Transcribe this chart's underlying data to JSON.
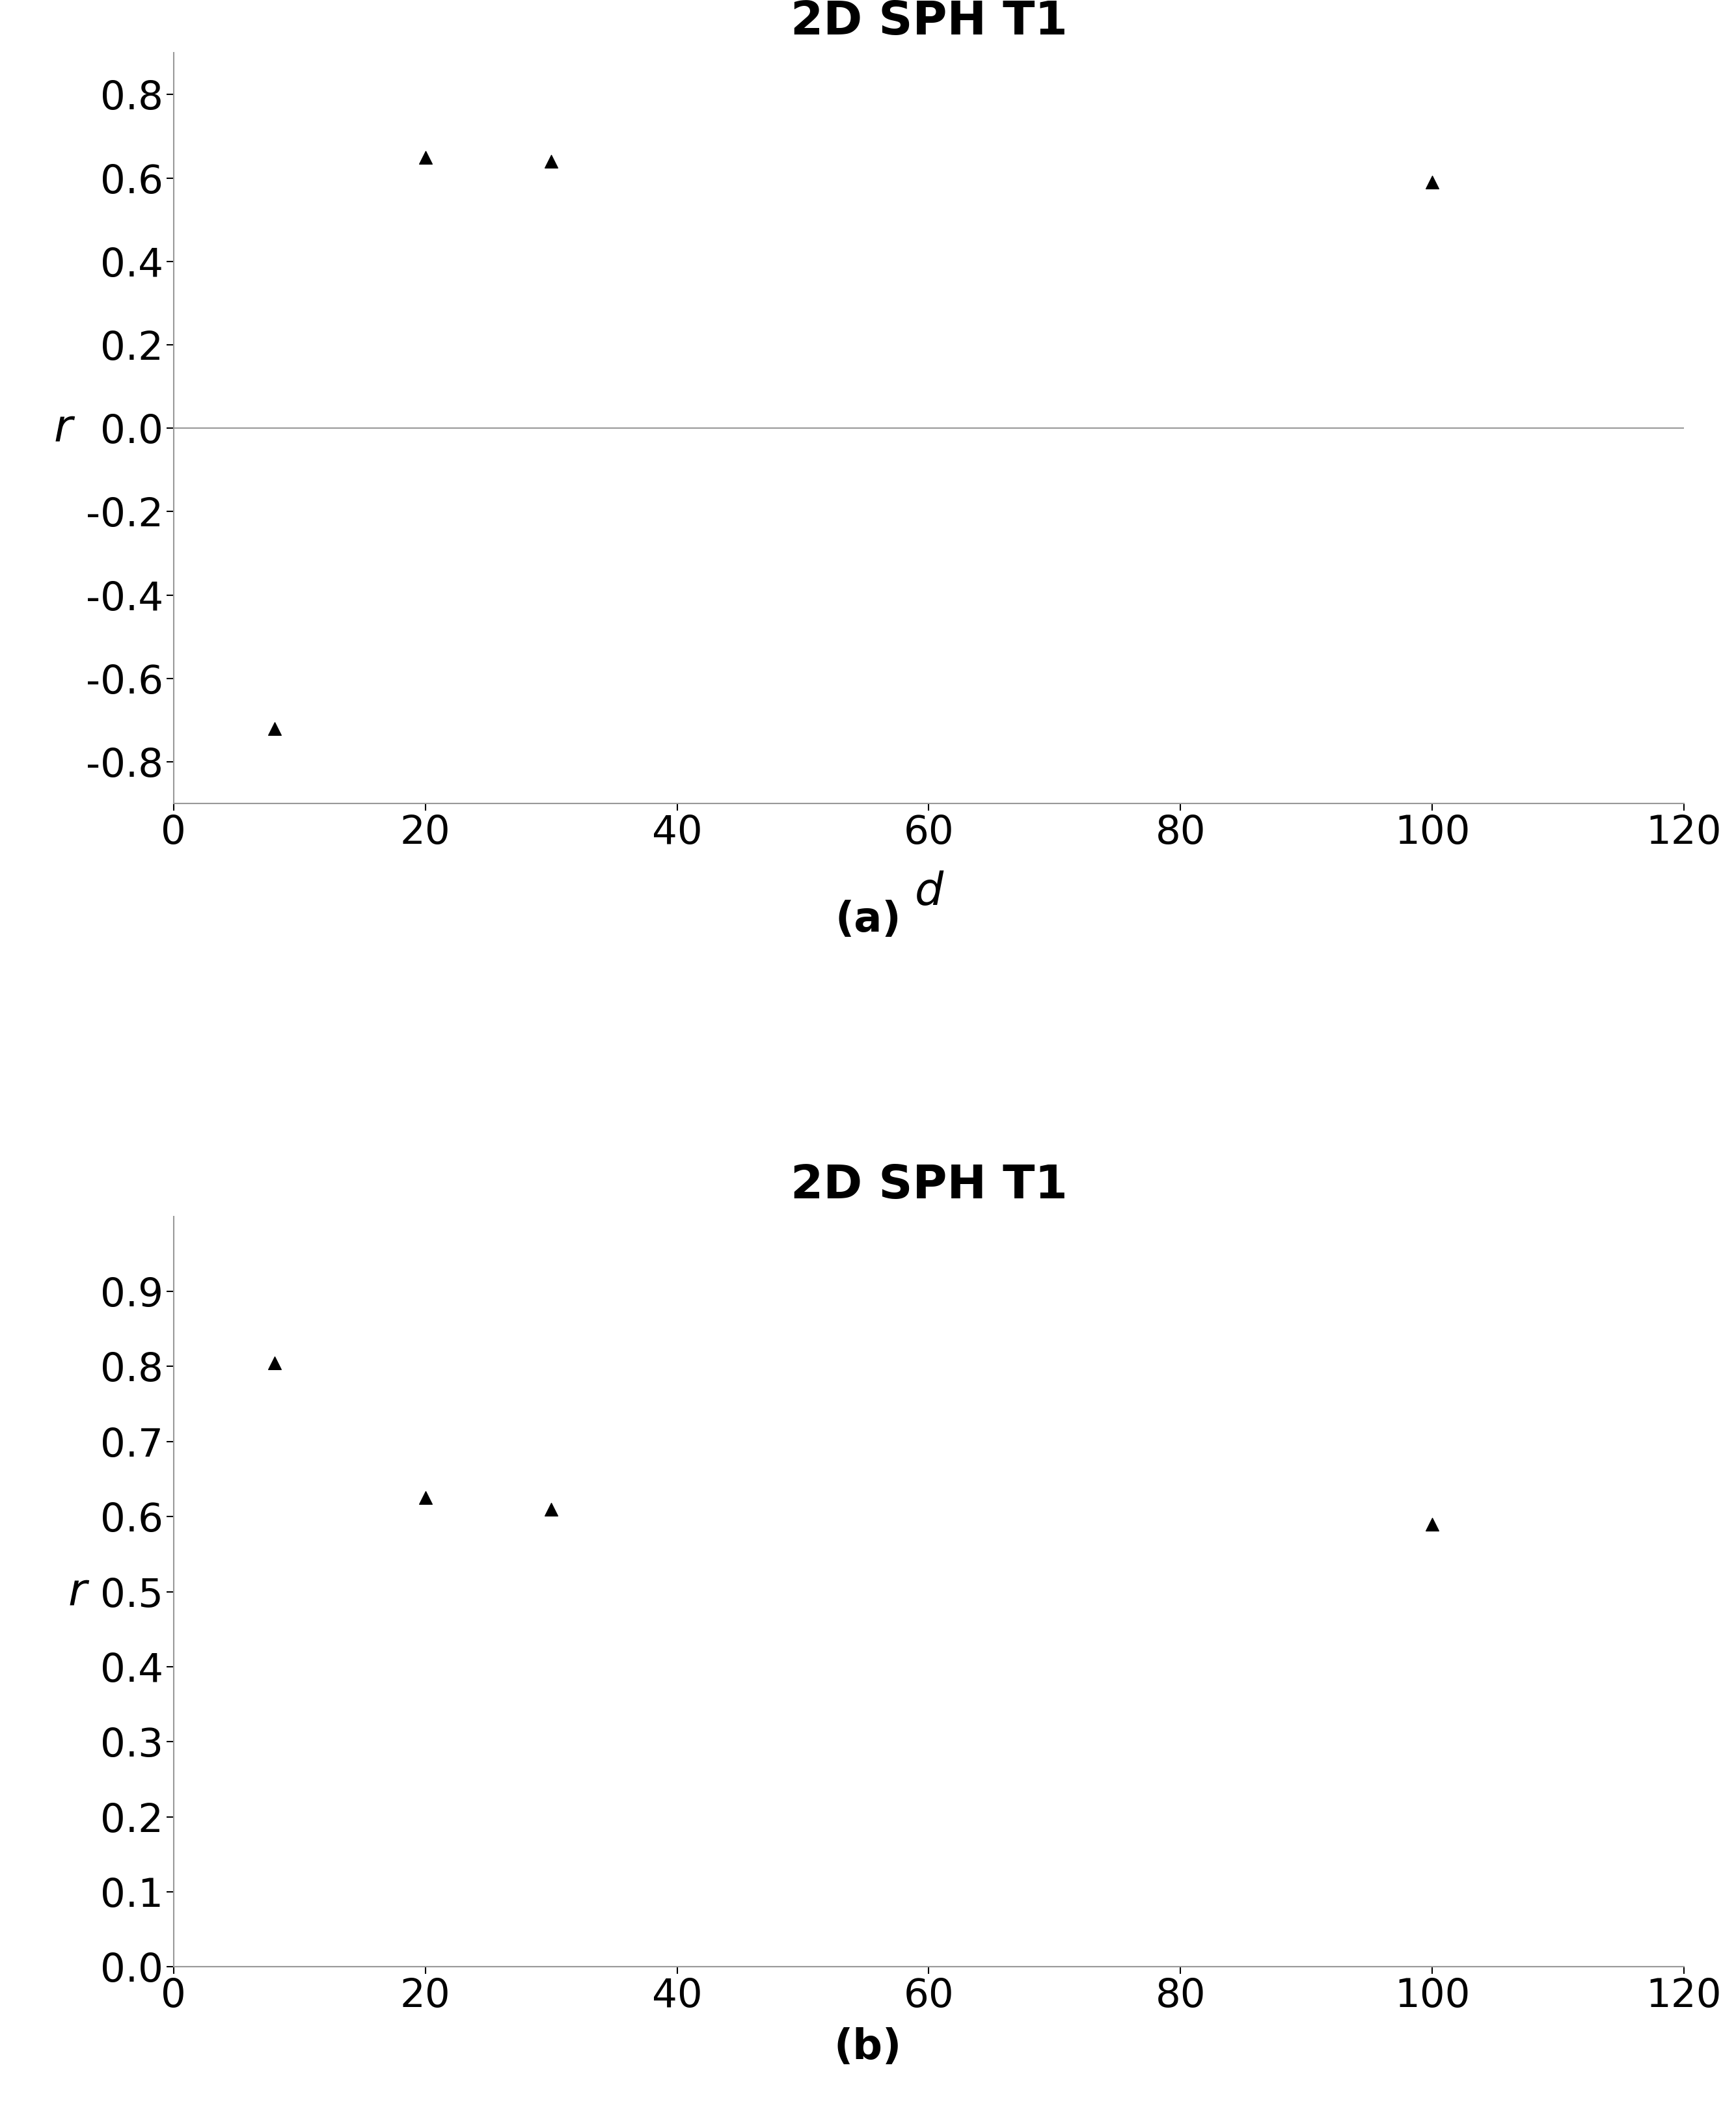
{
  "plot_a": {
    "title": "2D SPH T1",
    "x": [
      8,
      20,
      30,
      100
    ],
    "y": [
      -0.72,
      0.65,
      0.64,
      0.59
    ],
    "xlabel": "d",
    "ylabel": "r",
    "xlim": [
      0,
      120
    ],
    "ylim": [
      -0.9,
      0.9
    ],
    "yticks": [
      -0.8,
      -0.6,
      -0.4,
      -0.2,
      0,
      0.2,
      0.4,
      0.6,
      0.8
    ],
    "xticks": [
      0,
      20,
      40,
      60,
      80,
      100,
      120
    ],
    "label": "(a)"
  },
  "plot_b": {
    "title": "2D SPH T1",
    "x": [
      8,
      20,
      30,
      100
    ],
    "y": [
      0.805,
      0.625,
      0.61,
      0.59
    ],
    "xlabel": "",
    "ylabel": "r",
    "xlim": [
      0,
      120
    ],
    "ylim": [
      0,
      1.0
    ],
    "yticks": [
      0,
      0.1,
      0.2,
      0.3,
      0.4,
      0.5,
      0.6,
      0.7,
      0.8,
      0.9
    ],
    "xticks": [
      0,
      20,
      40,
      60,
      80,
      100,
      120
    ],
    "label": "(b)"
  },
  "marker": "^",
  "marker_color": "black",
  "marker_size": 200,
  "title_fontsize": 52,
  "tick_fontsize": 44,
  "axis_label_fontsize": 50,
  "sublabel_fontsize": 46,
  "background_color": "#ffffff",
  "spine_color": "#999999",
  "axhline_color": "#999999",
  "axhline_lw": 1.5
}
